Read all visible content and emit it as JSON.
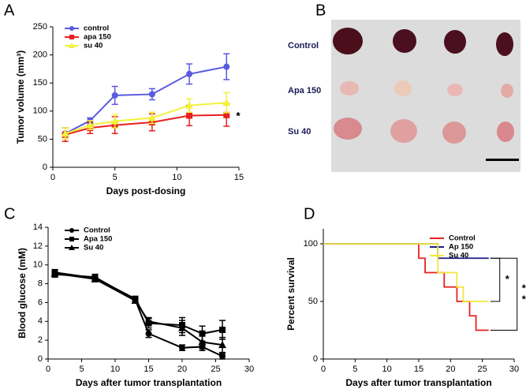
{
  "chart_data": [
    {
      "type": "line",
      "label": "A",
      "xlabel": "Days post-dosing",
      "ylabel": "Tumor volume (mm³)",
      "x": [
        1,
        3,
        5,
        8,
        11,
        14
      ],
      "xlim": [
        0,
        15
      ],
      "xticks": [
        0,
        5,
        10,
        15
      ],
      "ylim": [
        0,
        250
      ],
      "yticks": [
        0,
        50,
        100,
        150,
        200,
        250
      ],
      "series": [
        {
          "name": "control",
          "color": "#5a5ae0",
          "marker": "circle",
          "values": [
            60,
            83,
            128,
            130,
            166,
            179
          ],
          "errors": [
            10,
            5,
            16,
            10,
            18,
            23
          ]
        },
        {
          "name": "apa 150",
          "color": "#e8201f",
          "marker": "square",
          "values": [
            58,
            70,
            75,
            80,
            92,
            93
          ],
          "errors": [
            12,
            10,
            15,
            15,
            18,
            20
          ]
        },
        {
          "name": "su 40",
          "color": "#f2f23a",
          "marker": "triangle",
          "values": [
            60,
            75,
            82,
            88,
            110,
            115
          ],
          "errors": [
            10,
            8,
            12,
            10,
            12,
            18
          ]
        }
      ],
      "annotations": [
        "*"
      ]
    },
    {
      "type": "line",
      "label": "C",
      "xlabel": "Days after tumor transplantation",
      "ylabel": "Blood glucose (mM)",
      "x": [
        1,
        7,
        13,
        15,
        20,
        23,
        26
      ],
      "xlim": [
        0,
        30
      ],
      "xticks": [
        0,
        5,
        10,
        15,
        20,
        25,
        30
      ],
      "ylim": [
        0,
        14
      ],
      "yticks": [
        0,
        2,
        4,
        6,
        8,
        10,
        12,
        14
      ],
      "series": [
        {
          "name": "Control",
          "color": "#000000",
          "marker": "circle",
          "values": [
            9.0,
            8.7,
            6.3,
            2.7,
            1.2,
            1.3,
            0.3
          ],
          "errors": [
            0.3,
            0.3,
            0.2,
            0.4,
            0.3,
            0.4,
            0.3
          ]
        },
        {
          "name": "Apa 150",
          "color": "#000000",
          "marker": "square",
          "values": [
            9.2,
            8.6,
            6.4,
            3.8,
            3.6,
            2.7,
            3.1
          ],
          "errors": [
            0.3,
            0.3,
            0.2,
            0.5,
            0.8,
            0.8,
            1.0
          ]
        },
        {
          "name": "Su 40",
          "color": "#000000",
          "marker": "triangle",
          "values": [
            9.1,
            8.5,
            6.2,
            4.0,
            3.3,
            1.8,
            1.5
          ],
          "errors": [
            0.3,
            0.3,
            0.2,
            0.4,
            0.8,
            0.7,
            0.8
          ]
        }
      ]
    },
    {
      "type": "step",
      "label": "D",
      "xlabel": "Days after tumor transplantation",
      "ylabel": "Percent survival",
      "xlim": [
        0,
        30
      ],
      "xticks": [
        0,
        5,
        10,
        15,
        20,
        25,
        30
      ],
      "ylim": [
        0,
        113
      ],
      "yticks": [
        0,
        50,
        100
      ],
      "series": [
        {
          "name": "Control",
          "color": "#e8201f",
          "x": [
            0,
            15,
            16,
            19,
            21,
            23,
            24,
            26
          ],
          "values": [
            100,
            87.5,
            75,
            62.5,
            50,
            37.5,
            25,
            25
          ]
        },
        {
          "name": "Ap 150",
          "color": "#1c1c8c",
          "x": [
            0,
            18,
            26
          ],
          "values": [
            100,
            87.5,
            87.5
          ]
        },
        {
          "name": "Su 40",
          "color": "#f2e63a",
          "x": [
            0,
            18,
            21,
            22,
            26
          ],
          "values": [
            100,
            75,
            62.5,
            50,
            50
          ]
        }
      ],
      "annotations": [
        "*",
        "*",
        "*"
      ]
    }
  ],
  "photo": {
    "label": "B",
    "rows": [
      "Control",
      "Apa 150",
      "Su 40"
    ]
  }
}
